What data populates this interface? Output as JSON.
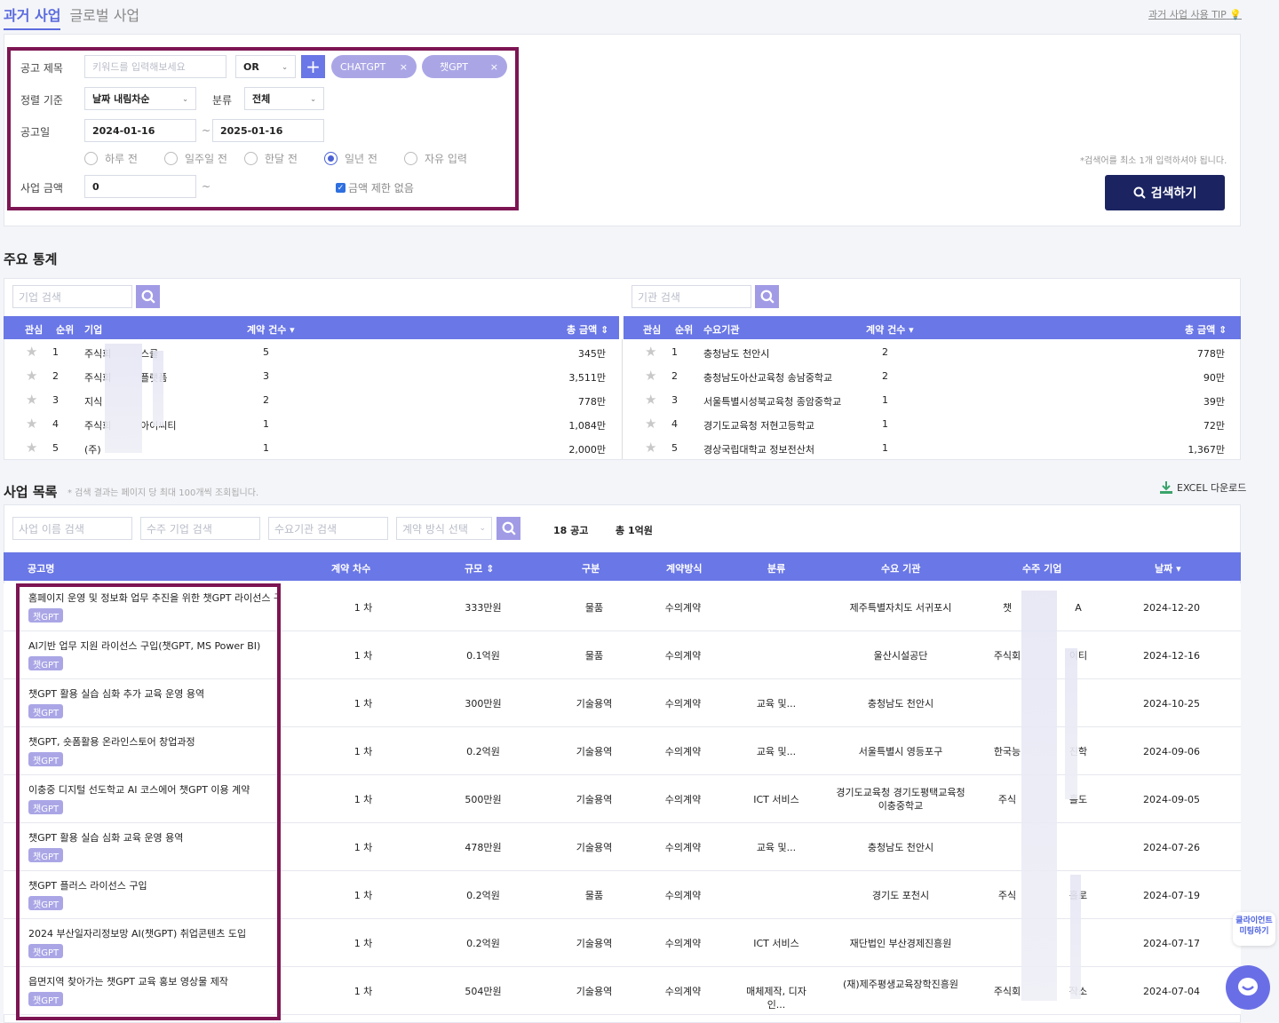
{
  "tabs": [
    {
      "label": "과거 사업"
    },
    {
      "label": "글로벌 사업"
    }
  ],
  "tip_link": "과거 사업 사용 TIP",
  "filters": {
    "title_label": "공고 제목",
    "keyword_placeholder": "키워드를 입력해보세요",
    "operator": "OR",
    "chips": [
      "CHATGPT",
      "챗GPT"
    ],
    "sort_label": "정렬 기준",
    "sort_value": "날짜 내림차순",
    "category_label": "분류",
    "category_value": "전체",
    "date_label": "공고일",
    "date_from": "2024-01-16",
    "date_sep": "~",
    "date_to": "2025-01-16",
    "periods": [
      "하루 전",
      "일주일 전",
      "한달 전",
      "일년 전",
      "자유 입력"
    ],
    "period_selected": "일년 전",
    "amount_label": "사업 금액",
    "amount_value": "0",
    "amount_sep": "~",
    "no_limit_label": "금액 제한 없음",
    "hint": "*검색어를 최소 1개 입력하셔야 됩니다.",
    "search_button": "검색하기"
  },
  "stats": {
    "title": "주요 통계",
    "company_search_placeholder": "기업 검색",
    "agency_search_placeholder": "기관 검색",
    "left_headers": {
      "fav": "관심",
      "rank": "순위",
      "name": "기업",
      "count": "계약 건수",
      "total": "총 금액"
    },
    "right_headers": {
      "fav": "관심",
      "rank": "순위",
      "name": "수요기관",
      "count": "계약 건수",
      "total": "총 금액"
    },
    "companies": [
      {
        "rank": "1",
        "name": "주식회",
        "tail": "스쿨",
        "count": "5",
        "total": "345만"
      },
      {
        "rank": "2",
        "name": "주식회",
        "tail": "플랫폼",
        "count": "3",
        "total": "3,511만"
      },
      {
        "rank": "3",
        "name": "지식",
        "tail": "",
        "count": "2",
        "total": "778만"
      },
      {
        "rank": "4",
        "name": "주식회",
        "tail": "아이씨티",
        "count": "1",
        "total": "1,084만"
      },
      {
        "rank": "5",
        "name": "(주)",
        "tail": "",
        "count": "1",
        "total": "2,000만"
      }
    ],
    "agencies": [
      {
        "rank": "1",
        "name": "충청남도 천안시",
        "count": "2",
        "total": "778만"
      },
      {
        "rank": "2",
        "name": "충청남도아산교육청 송남중학교",
        "count": "2",
        "total": "90만"
      },
      {
        "rank": "3",
        "name": "서울특별시성북교육청 종암중학교",
        "count": "1",
        "total": "39만"
      },
      {
        "rank": "4",
        "name": "경기도교육청 저현고등학교",
        "count": "1",
        "total": "72만"
      },
      {
        "rank": "5",
        "name": "경상국립대학교 정보전산처",
        "count": "1",
        "total": "1,367만"
      }
    ]
  },
  "list": {
    "title": "사업 목록",
    "note": "* 검색 결과는 페이지 당 최대 100개씩 조회됩니다.",
    "excel_label": "EXCEL 다운로드",
    "name_search_placeholder": "사업 이름 검색",
    "company_search_placeholder": "수주 기업 검색",
    "agency_search_placeholder": "수요기관 검색",
    "method_select_placeholder": "계약 방식 선택",
    "count_summary": "18 공고",
    "total_summary": "총 1억원",
    "headers": {
      "name": "공고명",
      "round": "계약 차수",
      "scale": "규모",
      "type": "구분",
      "method": "계약방식",
      "category": "분류",
      "agency": "수요 기관",
      "winner": "수주 기업",
      "date": "날짜"
    },
    "tag": "챗GPT",
    "rows": [
      {
        "name": "홈페이지 운영 및 정보화 업무 추진을 위한 챗GPT 라이선스 구입",
        "round": "1 차",
        "scale": "333만원",
        "type": "물품",
        "method": "수의계약",
        "category": "",
        "agency": "제주특별자치도 서귀포시",
        "winner": "챗",
        "winner_tail": "A",
        "date": "2024-12-20"
      },
      {
        "name": "AI기반 업무 지원 라이선스 구입(챗GPT, MS Power BI)",
        "round": "1 차",
        "scale": "0.1억원",
        "type": "물품",
        "method": "수의계약",
        "category": "",
        "agency": "울산시설공단",
        "winner": "주식회",
        "winner_tail": "이티",
        "date": "2024-12-16"
      },
      {
        "name": "챗GPT 활용 실습 심화 추가 교육 운영 용역",
        "round": "1 차",
        "scale": "300만원",
        "type": "기술용역",
        "method": "수의계약",
        "category": "교육 및...",
        "agency": "충청남도 천안시",
        "winner": "",
        "winner_tail": "",
        "date": "2024-10-25"
      },
      {
        "name": "챗GPT, 숏폼활용 온라인스토어 창업과정",
        "round": "1 차",
        "scale": "0.2억원",
        "type": "기술용역",
        "method": "수의계약",
        "category": "교육 및...",
        "agency": "서울특별시 영등포구",
        "winner": "한국능",
        "winner_tail": "진학",
        "date": "2024-09-06"
      },
      {
        "name": "이충중 디지털 선도학교 AI 코스에어 챗GPT 이용 계약",
        "round": "1 차",
        "scale": "500만원",
        "type": "기술용역",
        "method": "수의계약",
        "category": "ICT 서비스",
        "agency": "경기도교육청 경기도평택교육청 이충중학교",
        "winner": "주식",
        "winner_tail": "홀도",
        "date": "2024-09-05"
      },
      {
        "name": "챗GPT 활용 실습 심화 교육 운영 용역",
        "round": "1 차",
        "scale": "478만원",
        "type": "기술용역",
        "method": "수의계약",
        "category": "교육 및...",
        "agency": "충청남도 천안시",
        "winner": "",
        "winner_tail": "",
        "date": "2024-07-26"
      },
      {
        "name": "챗GPT 플러스 라이선스 구입",
        "round": "1 차",
        "scale": "0.2억원",
        "type": "물품",
        "method": "수의계약",
        "category": "",
        "agency": "경기도 포천시",
        "winner": "주식",
        "winner_tail": "홀로",
        "date": "2024-07-19"
      },
      {
        "name": "2024 부산일자리정보망 AI(챗GPT) 취업콘텐츠 도입",
        "round": "1 차",
        "scale": "0.2억원",
        "type": "기술용역",
        "method": "수의계약",
        "category": "ICT 서비스",
        "agency": "재단법인 부산경제진흥원",
        "winner": "",
        "winner_tail": "",
        "date": "2024-07-17"
      },
      {
        "name": "읍면지역 찾아가는 챗GPT 교육 홍보 영상물 제작",
        "round": "1 차",
        "scale": "504만원",
        "type": "기술용역",
        "method": "수의계약",
        "category": "매체제작, 디자인...",
        "agency": "(재)제주평생교육장학진흥원",
        "winner": "주식회",
        "winner_tail": "작소",
        "date": "2024-07-04"
      }
    ]
  },
  "floating": {
    "meeting_label": "클라이언트 미팅하기"
  },
  "colors": {
    "accent": "#6a77e6",
    "highlight_border": "#7d1553",
    "search_button": "#1b2461",
    "chip": "#aaa6e6"
  }
}
